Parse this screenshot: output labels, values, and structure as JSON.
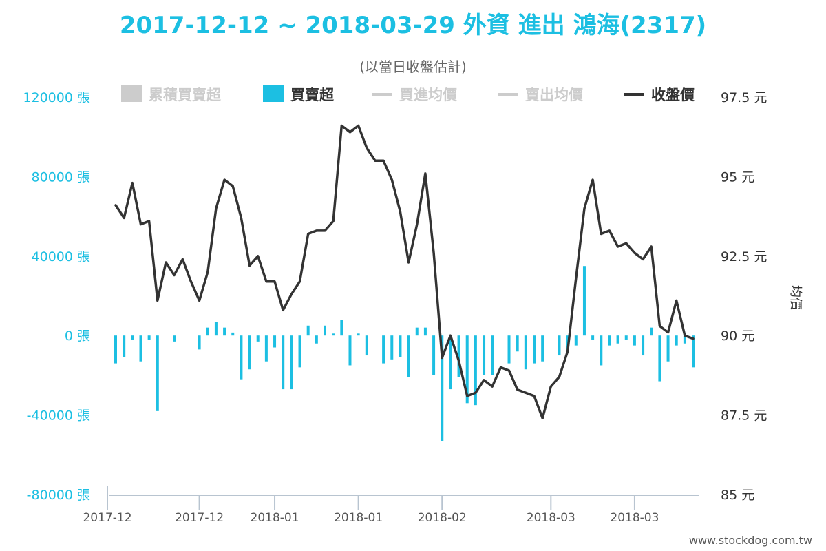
{
  "chart_data": {
    "type": "bar+line",
    "title": "2017-12-12 ~ 2018-03-29 外資 進出 鴻海(2317)",
    "subtitle": "(以當日收盤估計)",
    "watermark": "www.stockdog.com.tw",
    "left_axis": {
      "unit": "張",
      "range": [
        -80000,
        120000
      ],
      "ticks": [
        -80000,
        -40000,
        0,
        40000,
        80000,
        120000
      ],
      "tick_labels": [
        "-80000 張",
        "-40000 張",
        "0 張",
        "40000 張",
        "80000 張",
        "120000 張"
      ]
    },
    "right_axis": {
      "title": "均價",
      "unit": "元",
      "range": [
        85,
        97.5
      ],
      "ticks": [
        85,
        87.5,
        90,
        92.5,
        95,
        97.5
      ],
      "tick_labels": [
        "85 元",
        "87.5 元",
        "90 元",
        "92.5 元",
        "95 元",
        "97.5 元"
      ]
    },
    "x_tick_labels": [
      {
        "label": "2017-12",
        "index": 0
      },
      {
        "label": "2017-12",
        "index": 10
      },
      {
        "label": "2018-01",
        "index": 19
      },
      {
        "label": "2018-01",
        "index": 29
      },
      {
        "label": "2018-02",
        "index": 39
      },
      {
        "label": "2018-03",
        "index": 52
      },
      {
        "label": "2018-03",
        "index": 62
      }
    ],
    "legend": [
      {
        "name": "累積買賣超",
        "symbol": "box",
        "color": "#cccccc",
        "active": false
      },
      {
        "name": "買賣超",
        "symbol": "box",
        "color": "#1cbfe2",
        "active": true
      },
      {
        "name": "買進均價",
        "symbol": "line",
        "color": "#cccccc",
        "active": false
      },
      {
        "name": "賣出均價",
        "symbol": "line",
        "color": "#cccccc",
        "active": false
      },
      {
        "name": "收盤價",
        "symbol": "line",
        "color": "#333333",
        "active": true
      }
    ],
    "series": [
      {
        "name": "買賣超",
        "type": "bar",
        "color": "#1cbfe2",
        "values": [
          -14000,
          -11000,
          -2000,
          -13000,
          -2000,
          -38000,
          0,
          -3000,
          0,
          0,
          -7000,
          4000,
          7000,
          4000,
          1500,
          -22000,
          -17000,
          -3000,
          -13000,
          -6000,
          -27000,
          -27000,
          -16000,
          5000,
          -4000,
          5000,
          1000,
          8000,
          -15000,
          1000,
          -10000,
          0,
          -14000,
          -12000,
          -11000,
          -21000,
          4000,
          4000,
          -20000,
          -53000,
          -27000,
          -21000,
          -34000,
          -35000,
          -20000,
          -20000,
          0,
          -14000,
          -8000,
          -17000,
          -14000,
          -13000,
          0,
          -10000,
          -7000,
          -5000,
          35000,
          -2000,
          -15000,
          -5000,
          -4000,
          -2000,
          -5000,
          -10000,
          4000,
          -23000,
          -13000,
          -5000,
          -4000,
          -16000
        ]
      },
      {
        "name": "收盤價",
        "type": "line",
        "color": "#333333",
        "values": [
          94.1,
          93.7,
          94.8,
          93.5,
          93.6,
          91.1,
          92.3,
          91.9,
          92.4,
          91.7,
          91.1,
          92.0,
          94.0,
          94.9,
          94.7,
          93.7,
          92.2,
          92.5,
          91.7,
          91.7,
          90.8,
          91.3,
          91.7,
          93.2,
          93.3,
          93.3,
          93.6,
          96.6,
          96.4,
          96.6,
          95.9,
          95.5,
          95.5,
          94.9,
          93.9,
          92.3,
          93.5,
          95.1,
          92.6,
          89.3,
          90.0,
          89.2,
          88.1,
          88.2,
          88.6,
          88.4,
          89.0,
          88.9,
          88.3,
          88.2,
          88.1,
          87.4,
          88.4,
          88.7,
          89.5,
          91.8,
          94.0,
          94.9,
          93.2,
          93.3,
          92.8,
          92.9,
          92.6,
          92.4,
          92.8,
          90.3,
          90.1,
          91.1,
          90.0,
          89.9
        ]
      }
    ]
  }
}
